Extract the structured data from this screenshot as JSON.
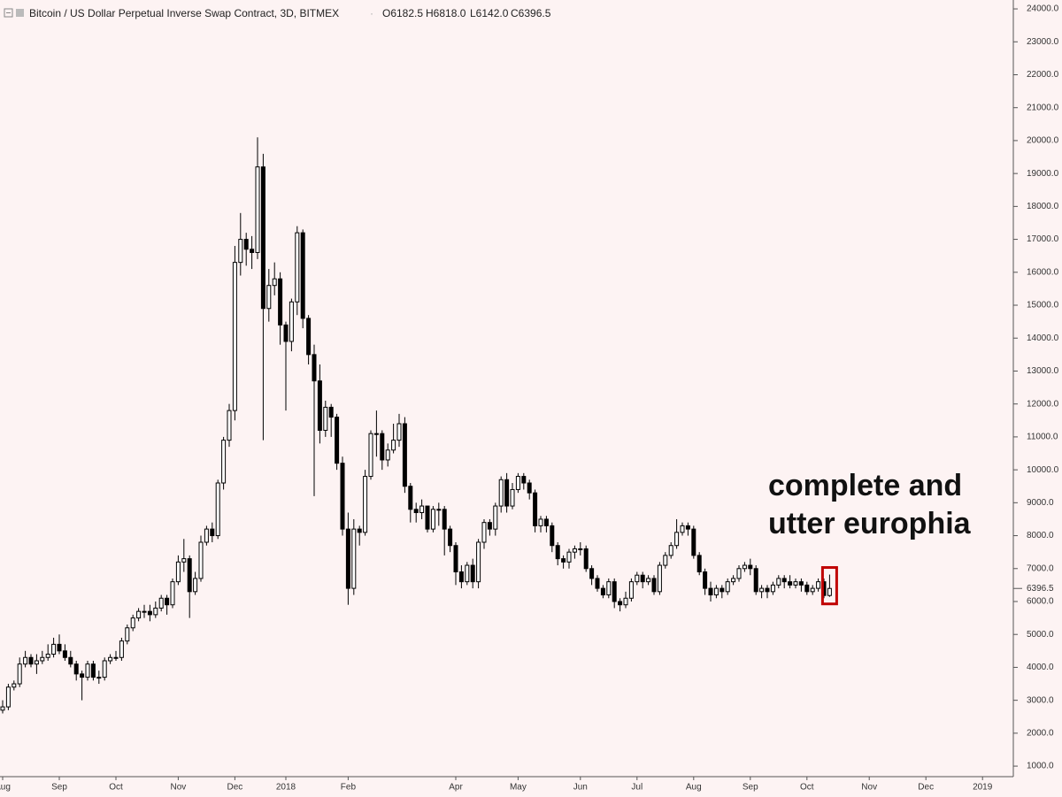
{
  "chart_data": {
    "type": "candlestick",
    "header": {
      "title": "Bitcoin / US Dollar Perpetual Inverse Swap Contract, 3D, BITMEX",
      "ohlc": [
        "O6182.5",
        "H6818.0",
        "L6142.0",
        "C6396.5"
      ]
    },
    "annotation": [
      "complete and",
      "utter europhia"
    ],
    "up_color": "#ffffff",
    "down_color": "#000000",
    "highlight_color": "#c00000",
    "ylim": [
      680,
      24270
    ],
    "yticks": [
      {
        "value": 1000,
        "label": "1000.0"
      },
      {
        "value": 2000,
        "label": "2000.0"
      },
      {
        "value": 3000,
        "label": "3000.0"
      },
      {
        "value": 4000,
        "label": "4000.0"
      },
      {
        "value": 5000,
        "label": "5000.0"
      },
      {
        "value": 6000,
        "label": "6000.0"
      },
      {
        "value": 7000,
        "label": "7000.0"
      },
      {
        "value": 8000,
        "label": "8000.0"
      },
      {
        "value": 9000,
        "label": "9000.0"
      },
      {
        "value": 10000,
        "label": "10000.0"
      },
      {
        "value": 11000,
        "label": "11000.0"
      },
      {
        "value": 12000,
        "label": "12000.0"
      },
      {
        "value": 13000,
        "label": "13000.0"
      },
      {
        "value": 14000,
        "label": "14000.0"
      },
      {
        "value": 15000,
        "label": "15000.0"
      },
      {
        "value": 16000,
        "label": "16000.0"
      },
      {
        "value": 17000,
        "label": "17000.0"
      },
      {
        "value": 18000,
        "label": "18000.0"
      },
      {
        "value": 19000,
        "label": "19000.0"
      },
      {
        "value": 20000,
        "label": "20000.0"
      },
      {
        "value": 21000,
        "label": "21000.0"
      },
      {
        "value": 22000,
        "label": "22000.0"
      },
      {
        "value": 23000,
        "label": "23000.0"
      },
      {
        "value": 24000,
        "label": "24000.0"
      }
    ],
    "categories": [
      "Aug",
      null,
      null,
      null,
      null,
      null,
      null,
      null,
      null,
      null,
      "Sep",
      null,
      null,
      null,
      null,
      null,
      null,
      null,
      null,
      null,
      "Oct",
      null,
      null,
      null,
      null,
      null,
      null,
      null,
      null,
      null,
      null,
      "Nov",
      null,
      null,
      null,
      null,
      null,
      null,
      null,
      null,
      null,
      "Dec",
      null,
      null,
      null,
      null,
      null,
      null,
      null,
      null,
      "2018",
      null,
      null,
      null,
      null,
      null,
      null,
      null,
      null,
      null,
      null,
      "Feb",
      null,
      null,
      null,
      null,
      null,
      null,
      null,
      null,
      null,
      null,
      null,
      null,
      null,
      null,
      null,
      null,
      null,
      null,
      "Apr",
      null,
      null,
      null,
      null,
      null,
      null,
      null,
      null,
      null,
      null,
      "May",
      null,
      null,
      null,
      null,
      null,
      null,
      null,
      null,
      null,
      null,
      "Jun",
      null,
      null,
      null,
      null,
      null,
      null,
      null,
      null,
      null,
      "Jul",
      null,
      null,
      null,
      null,
      null,
      null,
      null,
      null,
      null,
      "Aug",
      null,
      null,
      null,
      null,
      null,
      null,
      null,
      null,
      null,
      "Sep",
      null,
      null,
      null,
      null,
      null,
      null,
      null,
      null,
      null,
      "Oct",
      null,
      null,
      null,
      null,
      null,
      null,
      null,
      null,
      null,
      null,
      "Nov",
      null,
      null,
      null,
      null,
      null,
      null,
      null,
      null,
      null,
      "Dec",
      null,
      null,
      null,
      null,
      null,
      null,
      null,
      null,
      null,
      "2019",
      null,
      null,
      null,
      null
    ],
    "open": [
      2700,
      2800,
      3400,
      3500,
      4100,
      4300,
      4100,
      4200,
      4300,
      4400,
      4700,
      4500,
      4300,
      4100,
      3800,
      3700,
      4100,
      3700,
      3700,
      4200,
      4300,
      4300,
      4800,
      5200,
      5500,
      5700,
      5700,
      5600,
      5800,
      6100,
      5900,
      6600,
      7200,
      7300,
      6300,
      6700,
      7800,
      8200,
      8000,
      9600,
      10900,
      11800,
      16300,
      17000,
      16700,
      16600,
      19200,
      14900,
      15600,
      15800,
      14400,
      13900,
      15100,
      17200,
      14600,
      13500,
      12700,
      11200,
      11900,
      11600,
      10200,
      8200,
      6400,
      8200,
      8100,
      9800,
      11100,
      11100,
      10300,
      10600,
      10900,
      11400,
      9500,
      8800,
      8700,
      8900,
      8200,
      8800,
      8800,
      8200,
      7700,
      6900,
      6600,
      7100,
      6600,
      7800,
      8400,
      8200,
      8900,
      9700,
      8900,
      9400,
      9800,
      9600,
      9300,
      8300,
      8500,
      8300,
      7700,
      7300,
      7200,
      7500,
      7600,
      7600,
      7000,
      6700,
      6400,
      6200,
      6600,
      6000,
      5900,
      6100,
      6600,
      6800,
      6600,
      6700,
      6300,
      7100,
      7400,
      7700,
      8100,
      8300,
      8200,
      7400,
      6900,
      6400,
      6200,
      6400,
      6300,
      6600,
      6700,
      7000,
      7100,
      7000,
      6300,
      6400,
      6300,
      6500,
      6700,
      6600,
      6500,
      6600,
      6500,
      6300,
      6400,
      6600,
      6182.5,
      null,
      null,
      null,
      null,
      null,
      null,
      null,
      null,
      null,
      null,
      null,
      null,
      null,
      null,
      null,
      null,
      null,
      null,
      null,
      null,
      null,
      null,
      null,
      null,
      null,
      null,
      null,
      null,
      null,
      null,
      null
    ],
    "high": [
      3000,
      3500,
      3600,
      4300,
      4500,
      4400,
      4400,
      4500,
      4700,
      4900,
      5000,
      4700,
      4500,
      4200,
      3900,
      4200,
      4200,
      3900,
      4300,
      4400,
      4500,
      4900,
      5300,
      5600,
      5800,
      5900,
      5900,
      6000,
      6200,
      6200,
      6700,
      7400,
      7900,
      7400,
      6900,
      8000,
      8300,
      8400,
      9700,
      11000,
      12000,
      16800,
      17800,
      17200,
      17100,
      20100,
      19600,
      16100,
      16300,
      16000,
      14500,
      15200,
      17400,
      17300,
      14700,
      13800,
      13200,
      12100,
      12000,
      11700,
      10400,
      8700,
      8500,
      8300,
      10000,
      11200,
      11800,
      11200,
      10800,
      11400,
      11700,
      11600,
      9600,
      9000,
      9100,
      8900,
      8900,
      9000,
      8900,
      8300,
      7800,
      7100,
      7200,
      7300,
      7900,
      8500,
      8500,
      9000,
      9800,
      9900,
      9600,
      9900,
      9900,
      9700,
      9400,
      8600,
      8600,
      8400,
      7800,
      7400,
      7600,
      7700,
      7800,
      7700,
      7100,
      6800,
      6500,
      6700,
      6700,
      6100,
      6300,
      6700,
      6900,
      6900,
      6800,
      6800,
      7200,
      7500,
      7800,
      8500,
      8400,
      8400,
      8300,
      7500,
      7000,
      6600,
      6500,
      6500,
      6700,
      6800,
      7100,
      7200,
      7300,
      7100,
      6500,
      6500,
      6600,
      6800,
      6800,
      6800,
      6700,
      6700,
      6600,
      6500,
      6700,
      6700,
      6818,
      null,
      null,
      null,
      null,
      null,
      null,
      null,
      null,
      null,
      null,
      null,
      null,
      null,
      null,
      null,
      null,
      null,
      null,
      null,
      null,
      null,
      null,
      null,
      null,
      null,
      null,
      null,
      null,
      null,
      null,
      null
    ],
    "low": [
      2600,
      2700,
      3300,
      3400,
      4000,
      4000,
      3800,
      4100,
      4200,
      4300,
      4400,
      4200,
      4000,
      3600,
      3000,
      3600,
      3600,
      3500,
      3600,
      4100,
      4200,
      4200,
      4700,
      5100,
      5400,
      5500,
      5400,
      5500,
      5700,
      5600,
      5800,
      6500,
      6900,
      5500,
      6200,
      6600,
      7700,
      7800,
      7900,
      9400,
      10700,
      11500,
      15900,
      16200,
      16100,
      16400,
      10900,
      14500,
      15300,
      13800,
      11800,
      13600,
      14700,
      14300,
      13200,
      9200,
      10800,
      11000,
      11000,
      10000,
      8000,
      5900,
      6200,
      7700,
      8000,
      9700,
      10400,
      10000,
      10100,
      10500,
      10700,
      9300,
      8400,
      8400,
      8500,
      8100,
      8100,
      8300,
      7400,
      7500,
      6500,
      6400,
      6500,
      6400,
      6400,
      7600,
      8000,
      8000,
      8700,
      8700,
      8800,
      9300,
      9400,
      9100,
      8100,
      8100,
      8100,
      7500,
      7100,
      7000,
      7000,
      7300,
      7400,
      6900,
      6500,
      6300,
      6100,
      6100,
      5800,
      5700,
      5800,
      6000,
      6500,
      6400,
      6500,
      6200,
      6200,
      7000,
      7300,
      7600,
      8000,
      8000,
      7300,
      6800,
      6200,
      6000,
      6100,
      6100,
      6200,
      6500,
      6600,
      6900,
      6800,
      6200,
      6100,
      6100,
      6200,
      6400,
      6400,
      6400,
      6400,
      6300,
      6200,
      6200,
      6300,
      6100,
      6142,
      null,
      null,
      null,
      null,
      null,
      null,
      null,
      null,
      null,
      null,
      null,
      null,
      null,
      null,
      null,
      null,
      null,
      null,
      null,
      null,
      null,
      null,
      null,
      null,
      null,
      null,
      null,
      null,
      null,
      null,
      null
    ],
    "close": [
      2800,
      3400,
      3500,
      4100,
      4300,
      4100,
      4200,
      4300,
      4400,
      4700,
      4500,
      4300,
      4100,
      3800,
      3700,
      4100,
      3700,
      3700,
      4200,
      4300,
      4300,
      4800,
      5200,
      5500,
      5700,
      5700,
      5600,
      5800,
      6100,
      5900,
      6600,
      7200,
      7300,
      6300,
      6700,
      7800,
      8200,
      8000,
      9600,
      10900,
      11800,
      16300,
      17000,
      16700,
      16600,
      19200,
      14900,
      15600,
      15800,
      14400,
      13900,
      15100,
      17200,
      14600,
      13500,
      12700,
      11200,
      11900,
      11600,
      10200,
      8200,
      6400,
      8200,
      8100,
      9800,
      11100,
      11100,
      10300,
      10600,
      10900,
      11400,
      9500,
      8800,
      8700,
      8900,
      8200,
      8800,
      8800,
      8200,
      7700,
      6900,
      6600,
      7100,
      6600,
      7800,
      8400,
      8200,
      8900,
      9700,
      8900,
      9400,
      9800,
      9600,
      9300,
      8300,
      8500,
      8300,
      7700,
      7300,
      7200,
      7500,
      7600,
      7600,
      7000,
      6700,
      6400,
      6200,
      6600,
      6000,
      5900,
      6100,
      6600,
      6800,
      6600,
      6700,
      6300,
      7100,
      7400,
      7700,
      8100,
      8300,
      8200,
      7400,
      6900,
      6400,
      6200,
      6400,
      6300,
      6600,
      6700,
      7000,
      7100,
      7000,
      6300,
      6400,
      6300,
      6500,
      6700,
      6600,
      6500,
      6600,
      6500,
      6300,
      6400,
      6600,
      6182.5,
      6396.5,
      null,
      null,
      null,
      null,
      null,
      null,
      null,
      null,
      null,
      null,
      null,
      null,
      null,
      null,
      null,
      null,
      null,
      null,
      null,
      null,
      null,
      null,
      null,
      null,
      null,
      null,
      null,
      null,
      null,
      null,
      null
    ]
  }
}
